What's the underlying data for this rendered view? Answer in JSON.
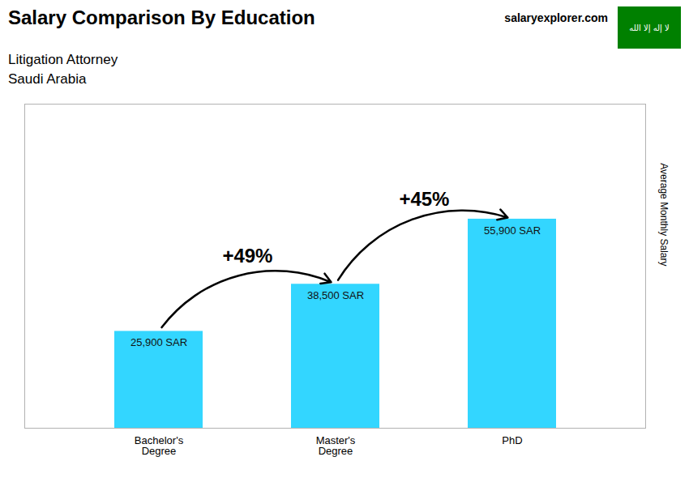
{
  "chart_data": {
    "type": "bar",
    "title": "Salary Comparison By Education",
    "subtitle": [
      "Litigation Attorney",
      "Saudi Arabia"
    ],
    "brand": "salaryexplorer.com",
    "flag": {
      "text": "لا إله إلا الله",
      "color": "#008000"
    },
    "ylabel": "Average Monthly Salary",
    "categories": [
      "Bachelor's\nDegree",
      "Master's\nDegree",
      "PhD"
    ],
    "values": [
      25900,
      38500,
      55900
    ],
    "value_labels": [
      "25,900 SAR",
      "38,500 SAR",
      "55,900 SAR"
    ],
    "data_labels": true,
    "color": "#00ccff",
    "ylim": [
      0,
      86645
    ],
    "yticks": [],
    "tick_labels": "x",
    "grid": false,
    "annotations": [
      {
        "text": "+49%",
        "from": "Bachelor's\nDegree",
        "to": "Master's\nDegree"
      },
      {
        "text": "+45%",
        "from": "Master's\nDegree",
        "to": "PhD"
      }
    ]
  }
}
